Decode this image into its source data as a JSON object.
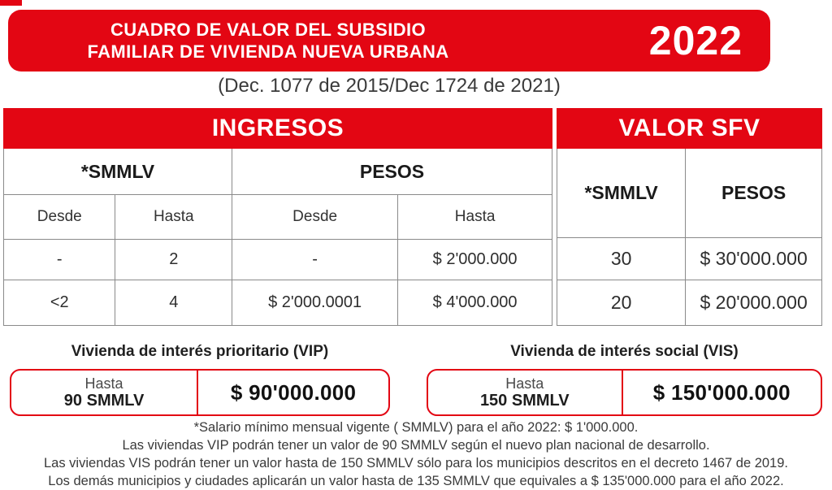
{
  "banner": {
    "title_line1": "CUADRO DE VALOR DEL SUBSIDIO",
    "title_line2": "FAMILIAR DE VIVIENDA NUEVA URBANA",
    "year": "2022"
  },
  "decree": "(Dec. 1077 de 2015/Dec 1724 de 2021)",
  "chart_data": {
    "type": "table",
    "title": "CUADRO DE VALOR DEL SUBSIDIO FAMILIAR DE VIVIENDA NUEVA URBANA 2022",
    "sections": {
      "ingresos": {
        "header": "INGRESOS",
        "groups": {
          "smmlv": "*SMMLV",
          "pesos": "PESOS"
        },
        "subheaders": {
          "c1": "Desde",
          "c2": "Hasta",
          "c3": "Desde",
          "c4": "Hasta"
        },
        "rows": [
          [
            "-",
            "2",
            "-",
            "$ 2'000.000"
          ],
          [
            "<2",
            "4",
            "$ 2'000.0001",
            "$ 4'000.000"
          ]
        ]
      },
      "valor_sfv": {
        "header": "VALOR SFV",
        "columns": {
          "smmlv": "*SMMLV",
          "pesos": "PESOS"
        },
        "rows": [
          [
            "30",
            "$ 30'000.000"
          ],
          [
            "20",
            "$ 20'000.000"
          ]
        ]
      }
    }
  },
  "vip": {
    "title": "Vivienda de interés prioritario (VIP)",
    "limit_label": "Hasta",
    "limit_value": "90 SMMLV",
    "amount": "$ 90'000.000"
  },
  "vis": {
    "title": "Vivienda de interés social (VIS)",
    "limit_label": "Hasta",
    "limit_value": "150 SMMLV",
    "amount": "$ 150'000.000"
  },
  "footnotes": [
    "*Salario mínimo mensual vigente ( SMMLV) para el año 2022: $ 1'000.000.",
    "Las viviendas VIP podrán tener un valor de 90 SMMLV según el nuevo plan nacional de desarrollo.",
    "Las viviendas VIS podrán tener un valor hasta de 150 SMMLV sólo para los municipios descritos en el decreto 1467 de 2019.",
    "Los demás municipios y ciudades aplicarán un valor hasta de 135 SMMLV que equivales a $ 135'000.000 para el año 2022."
  ],
  "colors": {
    "accent_red": "#e30613",
    "grid_gray": "#8a8a8a",
    "text_dark": "#2e2e2e"
  }
}
